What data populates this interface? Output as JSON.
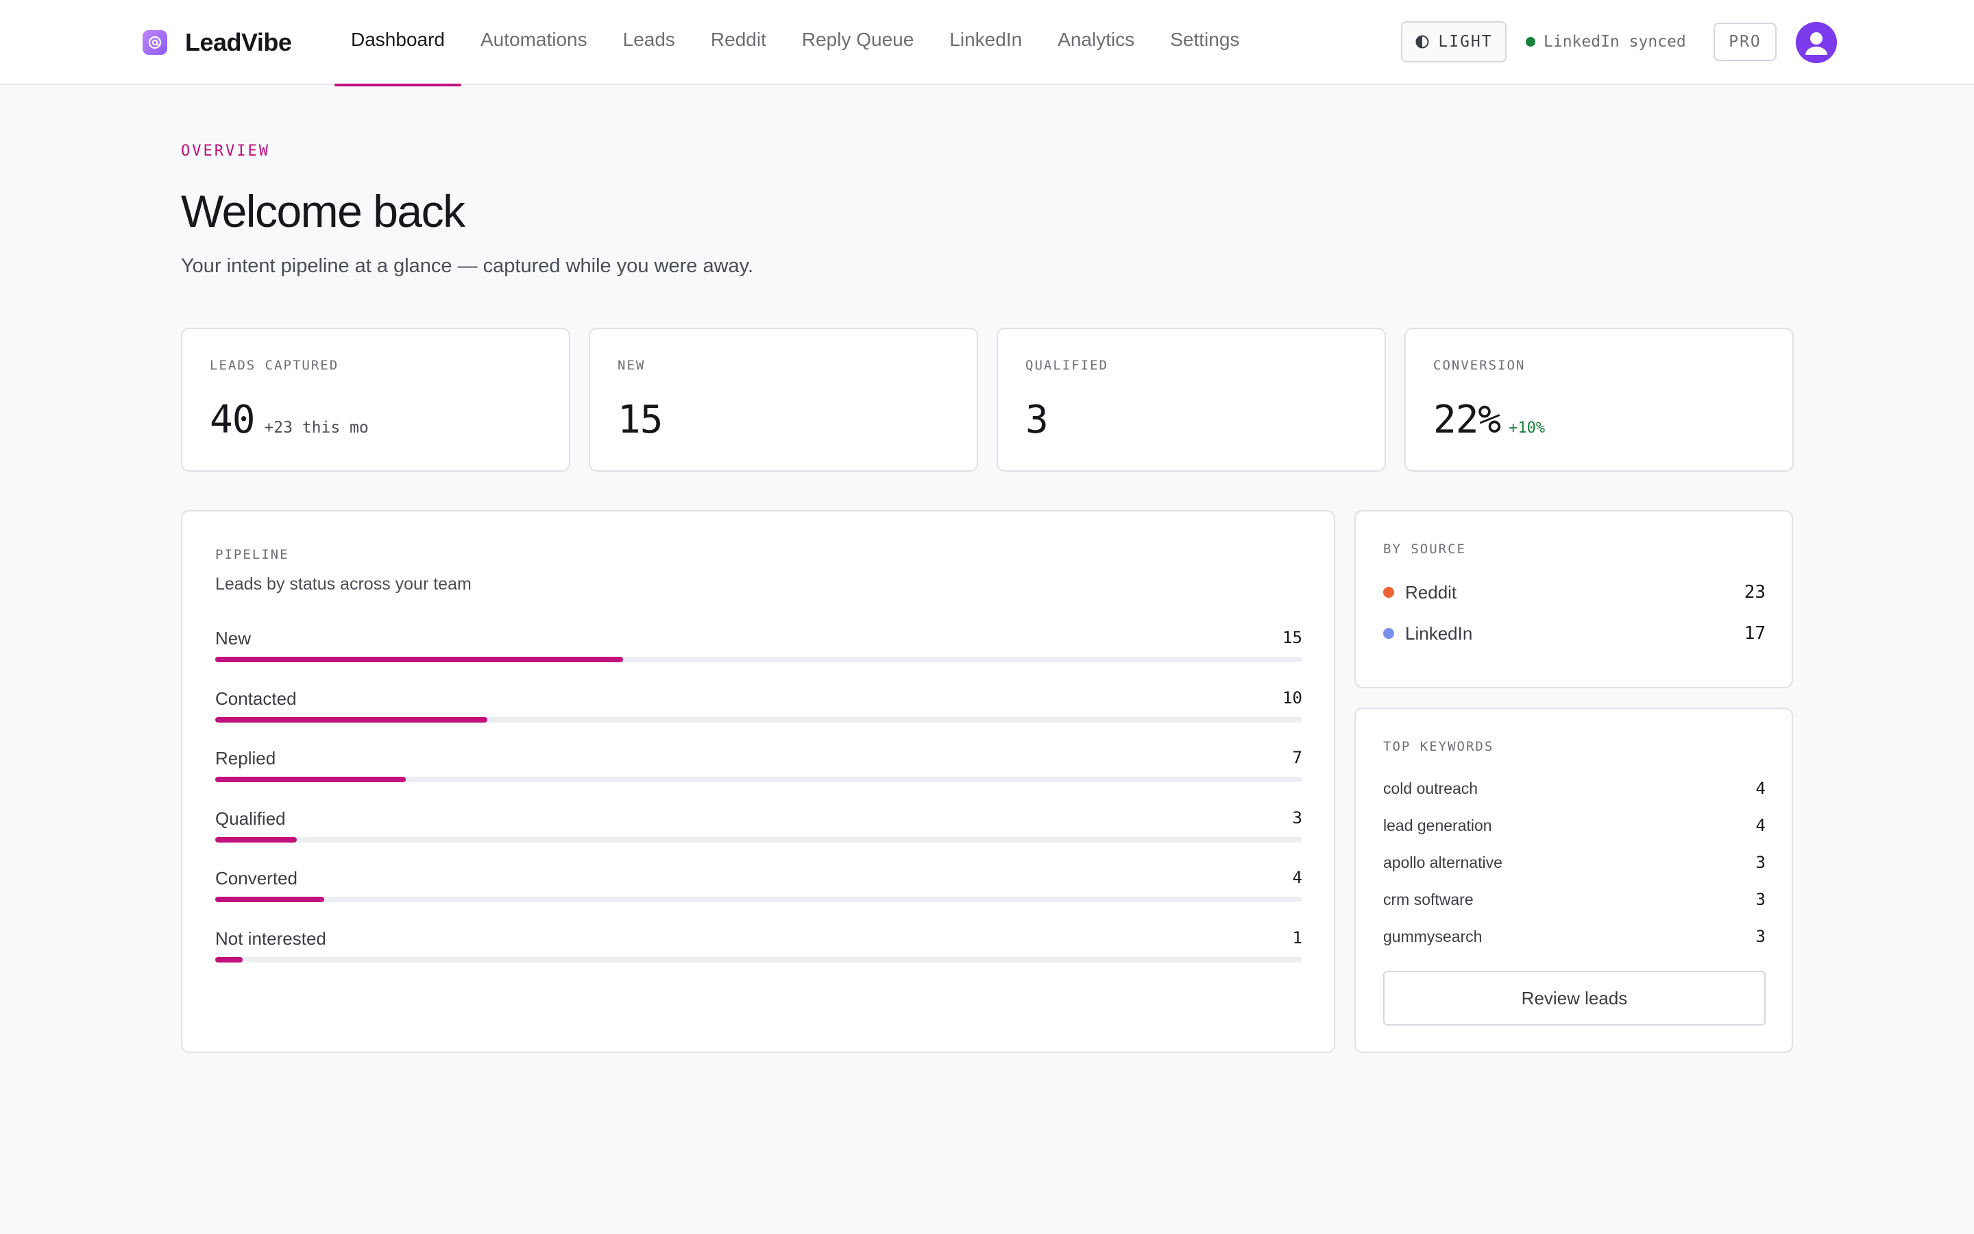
{
  "header": {
    "brand": "LeadVibe",
    "nav": [
      {
        "label": "Dashboard",
        "active": true
      },
      {
        "label": "Automations"
      },
      {
        "label": "Leads"
      },
      {
        "label": "Reddit"
      },
      {
        "label": "Reply Queue"
      },
      {
        "label": "LinkedIn"
      },
      {
        "label": "Analytics"
      },
      {
        "label": "Settings"
      }
    ],
    "theme_label": "LIGHT",
    "sync_status": "LinkedIn synced",
    "plan_badge": "PRO"
  },
  "intro": {
    "eyebrow": "OVERVIEW",
    "title": "Welcome back",
    "subtitle": "Your intent pipeline at a glance — captured while you were away."
  },
  "stats": [
    {
      "label": "LEADS CAPTURED",
      "value": "40",
      "delta": "+23 this mo"
    },
    {
      "label": "NEW",
      "value": "15"
    },
    {
      "label": "QUALIFIED",
      "value": "3"
    },
    {
      "label": "CONVERSION",
      "value": "22%",
      "delta": "+10%"
    }
  ],
  "pipeline": {
    "label": "PIPELINE",
    "caption": "Leads by status across your team",
    "max": 40,
    "rows": [
      {
        "name": "New",
        "count": 15
      },
      {
        "name": "Contacted",
        "count": 10
      },
      {
        "name": "Replied",
        "count": 7
      },
      {
        "name": "Qualified",
        "count": 3
      },
      {
        "name": "Converted",
        "count": 4
      },
      {
        "name": "Not interested",
        "count": 1
      }
    ]
  },
  "by_source": {
    "label": "BY SOURCE",
    "items": [
      {
        "name": "Reddit",
        "count": "23",
        "color": "#f0622f"
      },
      {
        "name": "LinkedIn",
        "count": "17",
        "color": "#7b8ff0"
      }
    ]
  },
  "top_keywords": {
    "label": "TOP KEYWORDS",
    "items": [
      {
        "name": "cold outreach",
        "count": "4"
      },
      {
        "name": "lead generation",
        "count": "4"
      },
      {
        "name": "apollo alternative",
        "count": "3"
      },
      {
        "name": "crm software",
        "count": "3"
      },
      {
        "name": "gummysearch",
        "count": "3"
      }
    ],
    "button": "Review leads"
  },
  "colors": {
    "accent": "#c2107d",
    "success": "#18803d",
    "avatar": "#7c3aed"
  }
}
